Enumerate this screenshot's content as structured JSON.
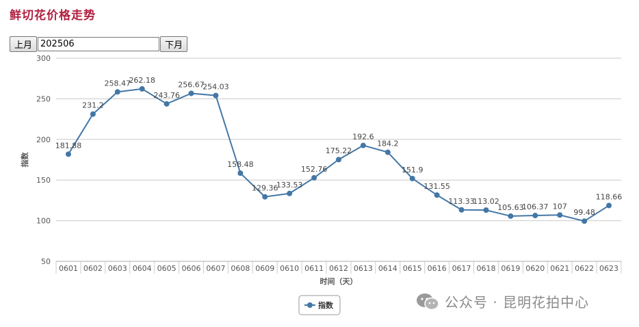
{
  "page": {
    "title": "鲜切花价格走势"
  },
  "nav": {
    "prev_label": "上月",
    "next_label": "下月",
    "month_value": "202506"
  },
  "watermark": {
    "text": "公众号 · 昆明花拍中心",
    "icon": "wechat-icon"
  },
  "colors": {
    "line": "#4377a6",
    "title": "#b0203f",
    "grid": "#c8c8c8",
    "axis_text": "#555555"
  },
  "chart_data": {
    "type": "line",
    "title": "",
    "xlabel": "时间（天）",
    "ylabel": "指数",
    "ylim": [
      50,
      300
    ],
    "yticks": [
      50,
      100,
      150,
      200,
      250,
      300
    ],
    "grid": true,
    "legend_position": "bottom-center",
    "categories": [
      "0601",
      "0602",
      "0603",
      "0604",
      "0605",
      "0606",
      "0607",
      "0608",
      "0609",
      "0610",
      "0611",
      "0612",
      "0613",
      "0614",
      "0615",
      "0616",
      "0617",
      "0618",
      "0619",
      "0620",
      "0621",
      "0622",
      "0623"
    ],
    "series": [
      {
        "name": "指数",
        "values": [
          181.88,
          231.2,
          258.47,
          262.18,
          243.76,
          256.67,
          254.03,
          158.48,
          129.36,
          133.53,
          152.76,
          175.22,
          192.6,
          184.2,
          151.9,
          131.55,
          113.33,
          113.02,
          105.63,
          106.37,
          107,
          99.48,
          118.66
        ],
        "labels": [
          "181.88",
          "231.2",
          "258.47",
          "262.18",
          "243.76",
          "256.67",
          "254.03",
          "158.48",
          "129.36",
          "133.53",
          "152.76",
          "175.22",
          "192.6",
          "184.2",
          "151.9",
          "131.55",
          "113.33",
          "113.02",
          "105.63",
          "106.37",
          "107",
          "99.48",
          "118.66"
        ]
      }
    ]
  }
}
